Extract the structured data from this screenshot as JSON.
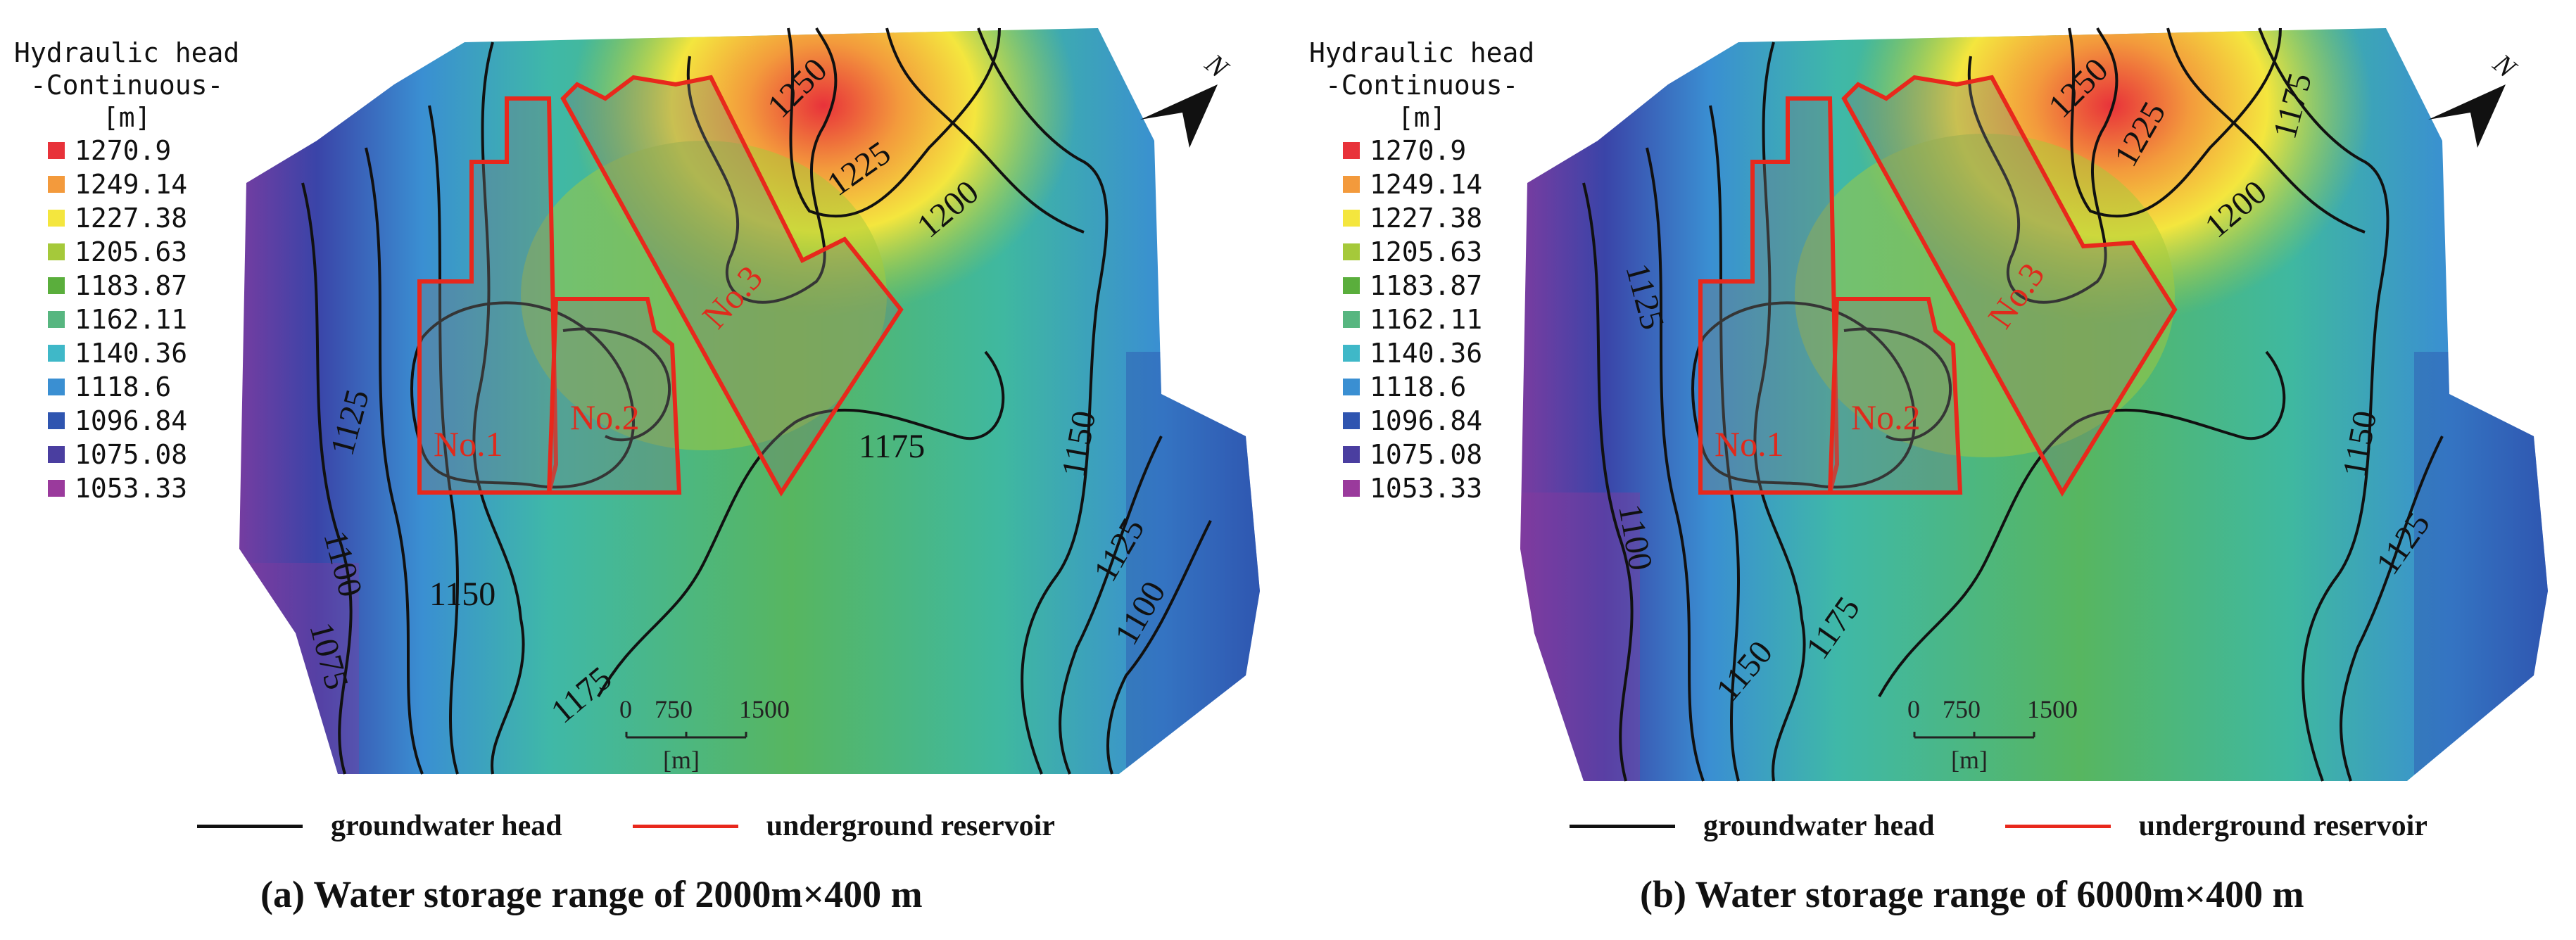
{
  "legend": {
    "title_line1": "Hydraulic head",
    "title_line2": "-Continuous-",
    "title_line3": "[m]",
    "items": [
      {
        "label": "1270.9",
        "color": "#e8323a"
      },
      {
        "label": "1249.14",
        "color": "#f39a3c"
      },
      {
        "label": "1227.38",
        "color": "#f4e63e"
      },
      {
        "label": "1205.63",
        "color": "#a5c93a"
      },
      {
        "label": "1183.87",
        "color": "#5aae3c"
      },
      {
        "label": "1162.11",
        "color": "#57b680"
      },
      {
        "label": "1140.36",
        "color": "#3fb8c8"
      },
      {
        "label": "1118.6",
        "color": "#3a8fd2"
      },
      {
        "label": "1096.84",
        "color": "#2f55b0"
      },
      {
        "label": "1075.08",
        "color": "#4a3ea0"
      },
      {
        "label": "1053.33",
        "color": "#9a3a9c"
      }
    ]
  },
  "panels": [
    {
      "caption": "(a)  Water storage range of 2000m×400 m",
      "contour_labels": [
        "1250",
        "1225",
        "1200",
        "1175",
        "1150",
        "1125",
        "1100",
        "1075",
        "1150",
        "1175",
        "1125",
        "1100"
      ],
      "reservoir_labels": [
        "No.1",
        "No.2",
        "No.3"
      ],
      "north": "N",
      "scale": {
        "t0": "0",
        "t1": "750",
        "t2": "1500",
        "unit": "[m]"
      }
    },
    {
      "caption": "(b)  Water storage range of 6000m×400 m",
      "contour_labels": [
        "1250",
        "1225",
        "1175",
        "1200",
        "1125",
        "1150",
        "1100",
        "1150",
        "1175",
        "1125"
      ],
      "reservoir_labels": [
        "No.1",
        "No.2",
        "No.3"
      ],
      "north": "N",
      "scale": {
        "t0": "0",
        "t1": "750",
        "t2": "1500",
        "unit": "[m]"
      }
    }
  ],
  "bottom_legend": {
    "head_label": "groundwater head",
    "reservoir_label": "underground reservoir",
    "head_color": "#111111",
    "reservoir_color": "#e8281c"
  }
}
